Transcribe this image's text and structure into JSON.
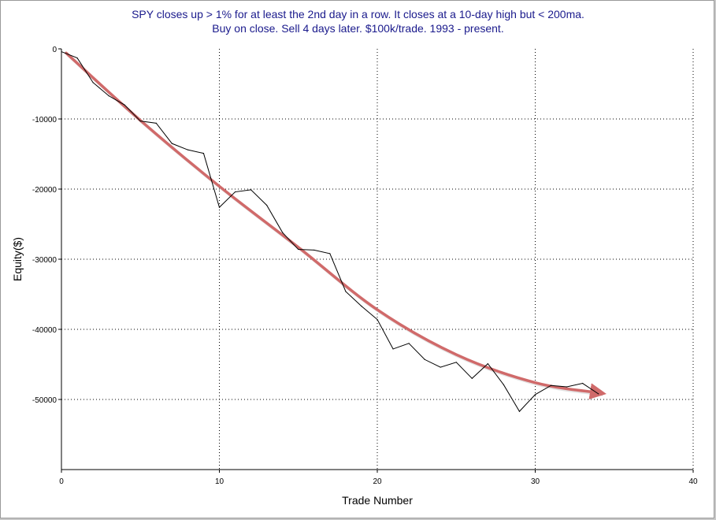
{
  "chart_data": {
    "type": "line",
    "title": "SPY closes up > 1% for at least the 2nd day in a row. It closes at a 10-day high but < 200ma.",
    "subtitle": "Buy on close. Sell 4 days later. $100k/trade. 1993 - present.",
    "xlabel": "Trade Number",
    "ylabel": "Equity($)",
    "xlim": [
      0,
      40
    ],
    "ylim": [
      -60000,
      0
    ],
    "xticks": [
      0,
      10,
      20,
      30,
      40
    ],
    "yticks": [
      0,
      -10000,
      -20000,
      -30000,
      -40000,
      -50000
    ],
    "grid": true,
    "series": [
      {
        "color": "#000000",
        "x": [
          0,
          1,
          2,
          3,
          4,
          5,
          6,
          7,
          8,
          9,
          10,
          11,
          12,
          13,
          14,
          15,
          16,
          17,
          18,
          19,
          20,
          21,
          22,
          23,
          24,
          25,
          26,
          27,
          28,
          29,
          30,
          31,
          32,
          33,
          34
        ],
        "values": [
          -400,
          -1300,
          -4800,
          -6700,
          -8000,
          -10300,
          -10600,
          -13500,
          -14400,
          -14900,
          -22600,
          -20400,
          -20100,
          -22300,
          -26200,
          -28600,
          -28700,
          -29200,
          -34600,
          -36700,
          -38600,
          -42800,
          -42000,
          -44300,
          -45400,
          -44700,
          -47000,
          -44900,
          -47900,
          -51700,
          -49300,
          -48000,
          -48200,
          -47700,
          -49200
        ]
      }
    ],
    "trend_arrow": {
      "color": "#d06a6a",
      "x": [
        0.3,
        5,
        10,
        15,
        20,
        25,
        30,
        34.2
      ],
      "values": [
        -600,
        -10200,
        -19600,
        -28300,
        -37200,
        -43600,
        -47600,
        -49100
      ]
    }
  }
}
